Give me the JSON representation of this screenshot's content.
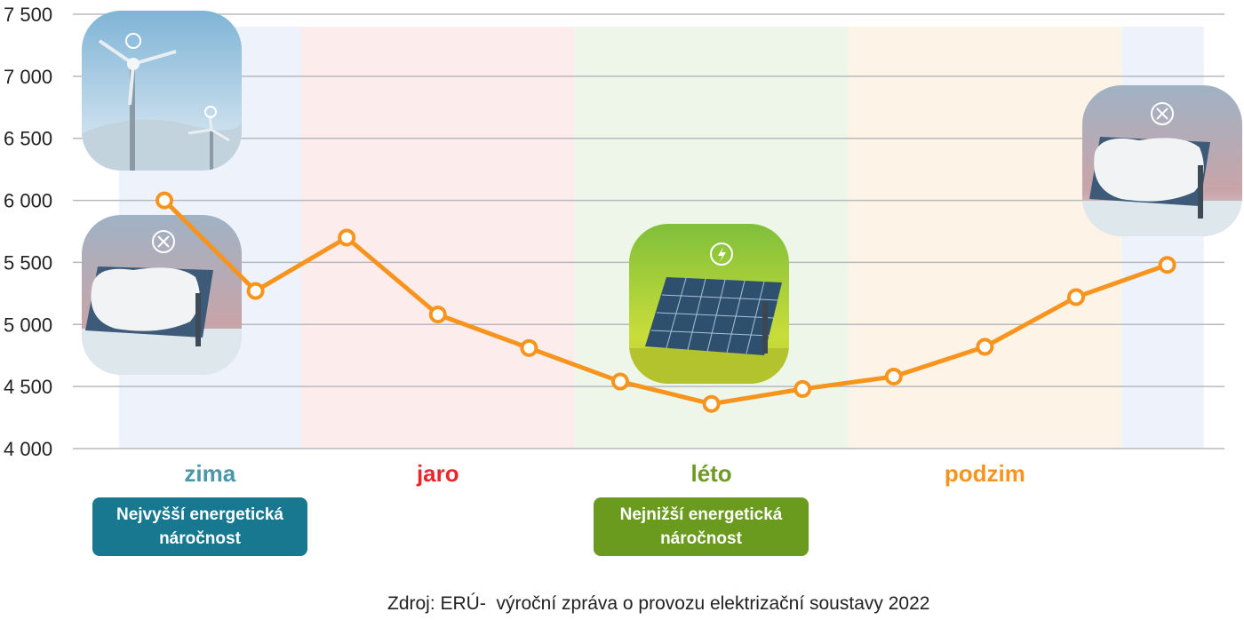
{
  "colors": {
    "line": "#f7941d",
    "grid": "#b8b8c0",
    "winter": "#4a97a8",
    "spring": "#e8262c",
    "summer": "#6f9a22",
    "autumn": "#f7941d",
    "winter_bg": "#eef3fb",
    "spring_bg": "#fdecec",
    "summer_bg": "#edf6e8",
    "autumn_bg": "#fef3e7",
    "badge_high": "#17788f",
    "badge_low": "#6a9a1e"
  },
  "chart_data": {
    "type": "line",
    "x": [
      1,
      2,
      3,
      4,
      5,
      6,
      7,
      8,
      9,
      10,
      11,
      12
    ],
    "values": [
      6000,
      5270,
      5700,
      5080,
      4810,
      4540,
      4360,
      4480,
      4580,
      4820,
      5220,
      5480
    ],
    "ylim": [
      4000,
      7500
    ],
    "yticks": [
      "4 000",
      "4 500",
      "5 000",
      "5 500",
      "6 000",
      "6 500",
      "7 000",
      "7 500"
    ],
    "ytick_values": [
      4000,
      4500,
      5000,
      5500,
      6000,
      6500,
      7000,
      7500
    ],
    "grid": true,
    "seasons": [
      {
        "key": "winter",
        "label": "zima",
        "months": [
          1,
          2
        ]
      },
      {
        "key": "spring",
        "label": "jaro",
        "months": [
          3,
          5
        ]
      },
      {
        "key": "summer",
        "label": "léto",
        "months": [
          6,
          8
        ]
      },
      {
        "key": "autumn",
        "label": "podzim",
        "months": [
          9,
          11
        ]
      }
    ]
  },
  "badges": {
    "highest": "Nejvyšší energetická náročnost",
    "lowest": "Nejnižší energetická náročnost"
  },
  "icons": [
    "wind-turbine-icon",
    "snow-covered-solar-panel-icon",
    "solar-panel-icon",
    "snow-covered-solar-panel-icon"
  ],
  "source": "Zdroj: ERÚ-  výroční zpráva o provozu elektrizační soustavy 2022"
}
